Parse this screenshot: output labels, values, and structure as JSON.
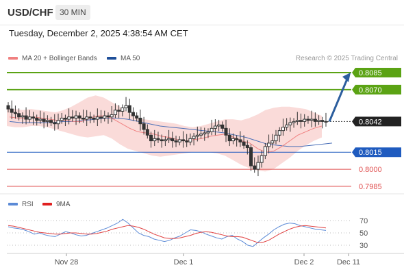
{
  "header": {
    "pair": "USD/CHF",
    "timeframe": "30 MIN"
  },
  "datetime": "Tuesday, December 2, 2025 4:38:54 AM CET",
  "legend": {
    "ma20": "MA 20 + Bollinger Bands",
    "ma50": "MA 50",
    "rsi": "RSI",
    "ma9": "9MA",
    "credit": "Research © 2025 Trading Central"
  },
  "colors": {
    "resistance": "#5ba314",
    "support": "#1f5bbf",
    "minor_support": "#e05050",
    "band_fill": "#f9d5d2",
    "ma20": "#f08080",
    "ma50": "#4a6fb8",
    "candle": "#333333",
    "arrow": "#2c5e9e",
    "rsi": "#5b8ad6",
    "ma9": "#e04040"
  },
  "chart_data": [
    {
      "type": "line",
      "title": "",
      "instrument": "USD/CHF",
      "timeframe": "30 MIN",
      "x_ticks": [
        "Nov 28",
        "Dec 1",
        "Dec 2",
        "Dec 11"
      ],
      "levels": [
        {
          "value": "0.8085",
          "kind": "resistance"
        },
        {
          "value": "0.8070",
          "kind": "resistance"
        },
        {
          "value": "0.8042",
          "kind": "current"
        },
        {
          "value": "0.8015",
          "kind": "support"
        },
        {
          "value": "0.8000",
          "kind": "minor-support"
        },
        {
          "value": "0.7985",
          "kind": "minor-support"
        }
      ],
      "close_series": [
        0.8053,
        0.805,
        0.8049,
        0.8046,
        0.8047,
        0.8044,
        0.8046,
        0.8045,
        0.8043,
        0.8044,
        0.8042,
        0.8043,
        0.8041,
        0.804,
        0.8043,
        0.8045,
        0.8044,
        0.8046,
        0.8045,
        0.8047,
        0.8045,
        0.8044,
        0.8046,
        0.8045,
        0.8044,
        0.8046,
        0.8045,
        0.8047,
        0.8046,
        0.8048,
        0.8052,
        0.8051,
        0.8054,
        0.8056,
        0.805,
        0.8047,
        0.8045,
        0.804,
        0.8035,
        0.803,
        0.8025,
        0.8027,
        0.8026,
        0.8025,
        0.8026,
        0.8027,
        0.8025,
        0.8024,
        0.8026,
        0.8025,
        0.8024,
        0.8027,
        0.8029,
        0.803,
        0.8031,
        0.8032,
        0.8033,
        0.8036,
        0.8038,
        0.8039,
        0.8036,
        0.803,
        0.8025,
        0.8027,
        0.8026,
        0.8024,
        0.8021,
        0.8019,
        0.8003,
        0.8,
        0.8006,
        0.8012,
        0.802,
        0.8023,
        0.8025,
        0.803,
        0.8034,
        0.8037,
        0.8039,
        0.8041,
        0.8042,
        0.8043,
        0.8042,
        0.8044,
        0.8043,
        0.8044,
        0.8042,
        0.8043,
        0.8042,
        0.8042
      ],
      "ma20_series": [
        0.8046,
        0.8045,
        0.8045,
        0.8046,
        0.8045,
        0.8044,
        0.8043,
        0.8043,
        0.8042,
        0.8042,
        0.8045,
        0.8047,
        0.8047,
        0.8044,
        0.804,
        0.8036,
        0.8033,
        0.8032,
        0.8031,
        0.8029,
        0.8028,
        0.8026,
        0.8025,
        0.8026,
        0.8027,
        0.8029,
        0.803,
        0.8031,
        0.8028,
        0.8025,
        0.8023,
        0.8018,
        0.8015,
        0.8016,
        0.802,
        0.8025,
        0.803,
        0.8033,
        0.8036,
        0.8038
      ],
      "ma50_series": [
        0.8042,
        0.8041,
        0.8041,
        0.8041,
        0.8041,
        0.8042,
        0.8042,
        0.8043,
        0.8044,
        0.8045,
        0.8045,
        0.8044,
        0.8042,
        0.804,
        0.8038,
        0.8037,
        0.8036,
        0.8035,
        0.8034,
        0.8033,
        0.8032,
        0.803,
        0.8028,
        0.8025,
        0.8022,
        0.8021,
        0.802,
        0.802,
        0.8021,
        0.8022,
        0.8023
      ],
      "bollinger_upper": [
        0.8054,
        0.8053,
        0.8052,
        0.8053,
        0.8052,
        0.8051,
        0.805,
        0.8052,
        0.8055,
        0.8059,
        0.8063,
        0.8065,
        0.8063,
        0.8059,
        0.8055,
        0.805,
        0.8045,
        0.8044,
        0.8043,
        0.8042,
        0.8041,
        0.804,
        0.8038,
        0.8037,
        0.8038,
        0.804,
        0.8042,
        0.8044,
        0.8044,
        0.8043,
        0.8045,
        0.8048,
        0.8052,
        0.8054,
        0.8055,
        0.8055,
        0.8054,
        0.8053,
        0.805,
        0.8047
      ],
      "bollinger_lower": [
        0.8038,
        0.8037,
        0.8037,
        0.8038,
        0.8038,
        0.8037,
        0.8035,
        0.8033,
        0.8031,
        0.8029,
        0.8028,
        0.8029,
        0.803,
        0.8027,
        0.8022,
        0.8018,
        0.8016,
        0.8014,
        0.8012,
        0.8011,
        0.8012,
        0.8013,
        0.8014,
        0.8015,
        0.8015,
        0.8015,
        0.8014,
        0.8012,
        0.8008,
        0.8004,
        0.8001,
        0.7999,
        0.7998,
        0.8,
        0.8005,
        0.801,
        0.8016,
        0.8021,
        0.8025,
        0.8028
      ],
      "projection": {
        "from": 0.8042,
        "to": 0.8085
      }
    },
    {
      "type": "line",
      "title": "RSI",
      "y_ticks": [
        70,
        50,
        30
      ],
      "ylim": [
        20,
        80
      ],
      "series": [
        {
          "name": "RSI",
          "values": [
            60,
            58,
            57,
            55,
            52,
            48,
            50,
            47,
            45,
            44,
            48,
            52,
            50,
            47,
            45,
            46,
            49,
            52,
            55,
            58,
            62,
            66,
            72,
            66,
            58,
            50,
            46,
            44,
            40,
            38,
            36,
            38,
            42,
            45,
            50,
            55,
            54,
            52,
            48,
            45,
            42,
            40,
            44,
            46,
            40,
            36,
            30,
            28,
            35,
            42,
            48,
            55,
            60,
            64,
            66,
            65,
            62,
            60,
            58,
            56,
            55,
            54
          ]
        },
        {
          "name": "9MA",
          "values": [
            62,
            61,
            59,
            57,
            55,
            53,
            51,
            50,
            49,
            48,
            48,
            49,
            50,
            50,
            49,
            48,
            48,
            49,
            51,
            53,
            56,
            58,
            60,
            62,
            61,
            59,
            56,
            52,
            48,
            45,
            42,
            41,
            41,
            42,
            44,
            46,
            49,
            51,
            52,
            51,
            49,
            47,
            45,
            44,
            44,
            43,
            40,
            37,
            34,
            35,
            38,
            43,
            48,
            52,
            56,
            59,
            61,
            62,
            61,
            60,
            59,
            58
          ]
        }
      ]
    }
  ]
}
